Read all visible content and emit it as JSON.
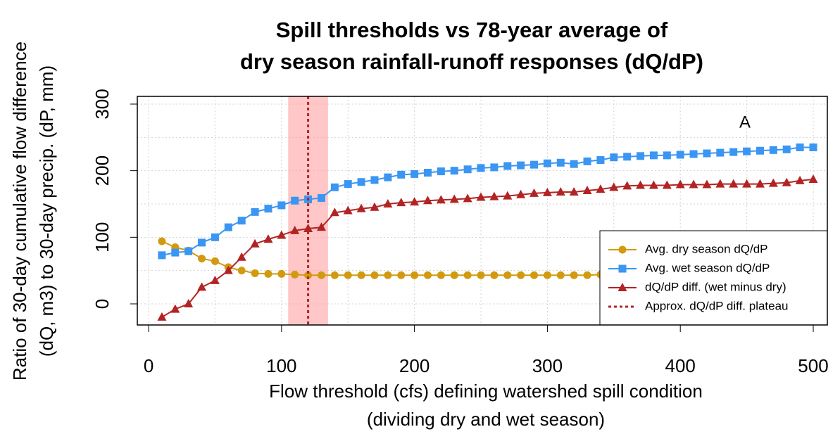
{
  "chart_data": {
    "type": "line",
    "title": [
      "Spill thresholds vs 78-year average of",
      "dry season rainfall-runoff responses (dQ/dP)"
    ],
    "x_label": [
      "Flow threshold (cfs) defining watershed spill condition",
      "(dividing dry and wet season)"
    ],
    "y_label": [
      "Ratio of 30-day cumulative flow difference",
      "(dQ, m3) to 30-day precip. (dP, mm)"
    ],
    "annotation": "A",
    "x": [
      10,
      20,
      30,
      40,
      50,
      60,
      70,
      80,
      90,
      100,
      110,
      120,
      130,
      140,
      150,
      160,
      170,
      180,
      190,
      200,
      210,
      220,
      230,
      240,
      250,
      260,
      270,
      280,
      290,
      300,
      310,
      320,
      330,
      340,
      350,
      360,
      370,
      380,
      390,
      400,
      410,
      420,
      430,
      440,
      450,
      460,
      470,
      480,
      490,
      500
    ],
    "series": [
      {
        "name": "Avg. dry season dQ/dP",
        "color": "#d19a0f",
        "marker": "circle",
        "values": [
          94,
          85,
          80,
          68,
          64,
          55,
          50,
          46,
          45,
          45,
          44,
          43,
          43,
          43,
          43,
          43,
          43,
          43,
          43,
          43,
          43,
          43,
          43,
          43,
          43,
          43,
          43,
          43,
          43,
          43,
          43,
          43,
          43,
          44,
          44,
          44,
          44,
          44,
          44,
          44,
          44,
          44,
          44,
          44,
          44,
          44,
          45,
          45,
          45,
          45
        ]
      },
      {
        "name": "Avg. wet season dQ/dP",
        "color": "#3a96f2",
        "marker": "square",
        "values": [
          73,
          77,
          79,
          92,
          100,
          115,
          125,
          138,
          143,
          148,
          155,
          157,
          159,
          175,
          180,
          183,
          186,
          190,
          194,
          195,
          197,
          199,
          200,
          202,
          204,
          205,
          207,
          208,
          209,
          211,
          212,
          210,
          214,
          216,
          220,
          221,
          222,
          223,
          223,
          224,
          225,
          226,
          227,
          228,
          229,
          230,
          231,
          232,
          235,
          235
        ]
      },
      {
        "name": "dQ/dP diff. (wet minus dry)",
        "color": "#b22424",
        "marker": "triangle",
        "values": [
          -20,
          -8,
          0,
          25,
          35,
          50,
          70,
          90,
          97,
          103,
          110,
          113,
          115,
          137,
          140,
          143,
          145,
          150,
          152,
          153,
          155,
          156,
          157,
          158,
          160,
          161,
          162,
          164,
          166,
          167,
          168,
          168,
          170,
          172,
          175,
          177,
          178,
          178,
          178,
          179,
          179,
          179,
          180,
          180,
          180,
          180,
          181,
          182,
          185,
          187
        ]
      }
    ],
    "plateau": {
      "name": "Approx. dQ/dP diff. plateau",
      "color": "#b22424",
      "x": 120,
      "range": [
        105,
        135
      ],
      "range_color": "#ff9999"
    },
    "xlim": [
      -8.5,
      510.6
    ],
    "ylim": [
      -31.7,
      311.6
    ],
    "xticks": [
      0,
      100,
      200,
      300,
      400,
      500
    ],
    "yticks": [
      0,
      100,
      200,
      300
    ],
    "xgrid": [
      0,
      50,
      100,
      150,
      200,
      250,
      300,
      350,
      400,
      450,
      500
    ],
    "ygrid": [
      0,
      50,
      100,
      150,
      200,
      250,
      300
    ],
    "grid": true,
    "legend": "bottom-right"
  }
}
